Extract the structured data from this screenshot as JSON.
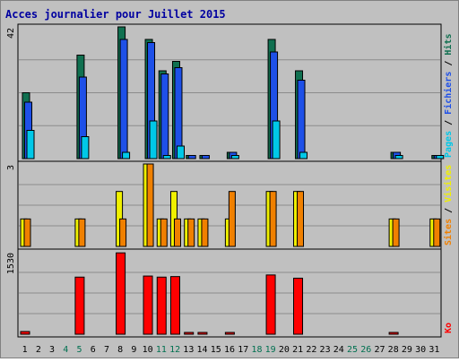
{
  "title": "Acces journalier pour Juillet 2015",
  "colors": {
    "background": "#c0c0c0",
    "title": "#0000a0",
    "pages": "#00c8e8",
    "fichiers": "#1e50e8",
    "hits": "#107050",
    "visites": "#f0f000",
    "sites": "#f08000",
    "ko": "#ff0000",
    "weekend_label": "#007050"
  },
  "chart_data": {
    "type": "bar",
    "categories": [
      "1",
      "2",
      "3",
      "4",
      "5",
      "6",
      "7",
      "8",
      "9",
      "10",
      "11",
      "12",
      "13",
      "14",
      "15",
      "16",
      "17",
      "18",
      "19",
      "20",
      "21",
      "22",
      "23",
      "24",
      "25",
      "26",
      "27",
      "28",
      "29",
      "30",
      "31"
    ],
    "weekend_days": [
      "4",
      "5",
      "11",
      "12",
      "18",
      "19",
      "25",
      "26"
    ],
    "panels": [
      {
        "id": "hits-panel",
        "ymax_label": "42",
        "ylim": [
          0,
          42
        ],
        "legend": [
          "Pages",
          "Fichiers",
          "Hits"
        ],
        "series": [
          {
            "name": "Hits",
            "values": [
              21,
              0,
              0,
              0,
              33,
              0,
              0,
              42,
              0,
              38,
              28,
              31,
              1,
              1,
              0,
              2,
              0,
              0,
              38,
              0,
              28,
              0,
              0,
              0,
              0,
              0,
              0,
              2,
              0,
              0,
              1
            ]
          },
          {
            "name": "Fichiers",
            "values": [
              18,
              0,
              0,
              0,
              26,
              0,
              0,
              38,
              0,
              37,
              27,
              29,
              1,
              1,
              0,
              2,
              0,
              0,
              34,
              0,
              25,
              0,
              0,
              0,
              0,
              0,
              0,
              2,
              0,
              0,
              1
            ]
          },
          {
            "name": "Pages",
            "values": [
              9,
              0,
              0,
              0,
              7,
              0,
              0,
              2,
              0,
              12,
              1,
              4,
              0,
              0,
              0,
              1,
              0,
              0,
              12,
              0,
              2,
              0,
              0,
              0,
              0,
              0,
              0,
              1,
              0,
              0,
              1
            ]
          }
        ]
      },
      {
        "id": "visits-panel",
        "ymax_label": "3",
        "ylim": [
          0,
          3
        ],
        "legend": [
          "Sites",
          "Visites"
        ],
        "series": [
          {
            "name": "Visites",
            "values": [
              1,
              0,
              0,
              0,
              1,
              0,
              0,
              2,
              0,
              3,
              1,
              2,
              1,
              1,
              0,
              1,
              0,
              0,
              2,
              0,
              2,
              0,
              0,
              0,
              0,
              0,
              0,
              1,
              0,
              0,
              1
            ]
          },
          {
            "name": "Sites",
            "values": [
              1,
              0,
              0,
              0,
              1,
              0,
              0,
              1,
              0,
              3,
              1,
              1,
              1,
              1,
              0,
              2,
              0,
              0,
              2,
              0,
              2,
              0,
              0,
              0,
              0,
              0,
              0,
              1,
              0,
              0,
              1
            ]
          }
        ]
      },
      {
        "id": "ko-panel",
        "ymax_label": "1530",
        "ylim": [
          0,
          1530
        ],
        "legend": [
          "Ko"
        ],
        "series": [
          {
            "name": "Ko",
            "values": [
              50,
              0,
              0,
              0,
              1060,
              0,
              0,
              1510,
              0,
              1080,
              1060,
              1070,
              20,
              20,
              0,
              20,
              0,
              0,
              1100,
              0,
              1040,
              0,
              0,
              0,
              0,
              0,
              0,
              20,
              0,
              0,
              0
            ]
          }
        ]
      }
    ]
  }
}
